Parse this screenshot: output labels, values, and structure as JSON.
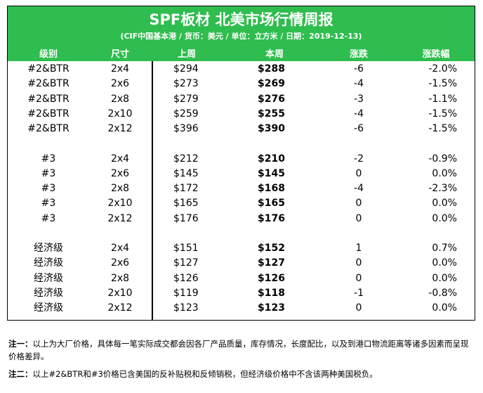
{
  "title": "SPF板材 北美市场行情周报",
  "subtitle": "(CIF中国基本港 / 货币：美元 / 单位：立方米 / 日期：2019-12-13)",
  "headers": [
    "级别",
    "尺寸",
    "上周",
    "本周",
    "涨跌",
    "涨跌幅"
  ],
  "groups": [
    {
      "rows": [
        [
          "#2&BTR",
          "2x4",
          "$294",
          "$288",
          "-6",
          "-2.0%"
        ],
        [
          "#2&BTR",
          "2x6",
          "$273",
          "$269",
          "-4",
          "-1.5%"
        ],
        [
          "#2&BTR",
          "2x8",
          "$279",
          "$276",
          "-3",
          "-1.1%"
        ],
        [
          "#2&BTR",
          "2x10",
          "$259",
          "$255",
          "-4",
          "-1.5%"
        ],
        [
          "#2&BTR",
          "2x12",
          "$396",
          "$390",
          "-6",
          "-1.5%"
        ]
      ]
    },
    {
      "rows": [
        [
          "#3",
          "2x4",
          "$212",
          "$210",
          "-2",
          "-0.9%"
        ],
        [
          "#3",
          "2x6",
          "$145",
          "$145",
          "0",
          "0.0%"
        ],
        [
          "#3",
          "2x8",
          "$172",
          "$168",
          "-4",
          "-2.3%"
        ],
        [
          "#3",
          "2x10",
          "$165",
          "$165",
          "0",
          "0.0%"
        ],
        [
          "#3",
          "2x12",
          "$176",
          "$176",
          "0",
          "0.0%"
        ]
      ]
    },
    {
      "rows": [
        [
          "经济级",
          "2x4",
          "$151",
          "$152",
          "1",
          "0.7%"
        ],
        [
          "经济级",
          "2x6",
          "$127",
          "$127",
          "0",
          "0.0%"
        ],
        [
          "经济级",
          "2x8",
          "$126",
          "$126",
          "0",
          "0.0%"
        ],
        [
          "经济级",
          "2x10",
          "$119",
          "$118",
          "-1",
          "-0.8%"
        ],
        [
          "经济级",
          "2x12",
          "$123",
          "$123",
          "0",
          "0.0%"
        ]
      ]
    }
  ],
  "notes": {
    "note1_label": "注一：",
    "note1_text": "以上为大厂价格，具体每一笔实际成交都会因各厂产品质量，库存情况，长度配比，以及到港口物流距离等诸多因素而呈现价格差异。",
    "note2_label": "注二：",
    "note2_text": "以上#2&BTR和#3价格已含美国的反补贴税和反倾销税，但经济级价格中不含该两种美国税负。"
  }
}
